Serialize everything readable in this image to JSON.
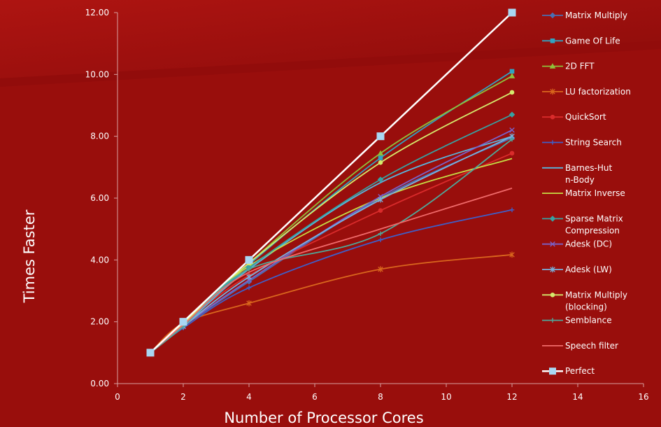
{
  "chart_data": {
    "type": "line",
    "xlabel": "Number of Processor Cores",
    "ylabel": "Times Faster",
    "xlim": [
      0,
      16
    ],
    "ylim": [
      0,
      12
    ],
    "x_ticks": [
      "0",
      "2",
      "4",
      "6",
      "8",
      "10",
      "12",
      "14",
      "16"
    ],
    "y_ticks": [
      "0.00",
      "2.00",
      "4.00",
      "6.00",
      "8.00",
      "10.00",
      "12.00"
    ],
    "grid": false,
    "legend_position": "right",
    "x": [
      1,
      2,
      4,
      8,
      12
    ],
    "series": [
      {
        "name": "Matrix Multiply",
        "color": "#4a6fb3",
        "marker": "diamond",
        "values": [
          1,
          1.85,
          3.3,
          6.0,
          7.95
        ]
      },
      {
        "name": "Game Of Life",
        "color": "#31a3c2",
        "marker": "square",
        "values": [
          1,
          1.9,
          3.85,
          7.3,
          10.1
        ]
      },
      {
        "name": "2D FFT",
        "color": "#8fc03a",
        "marker": "triangle",
        "values": [
          1,
          1.95,
          3.9,
          7.45,
          9.95
        ]
      },
      {
        "name": "LU factorization",
        "color": "#d9661d",
        "marker": "star",
        "values": [
          1,
          1.95,
          2.6,
          3.7,
          4.17
        ]
      },
      {
        "name": "QuickSort",
        "color": "#d92b2b",
        "marker": "circle",
        "values": [
          1,
          1.9,
          3.5,
          5.6,
          7.45
        ]
      },
      {
        "name": "String Search",
        "color": "#3f5fc8",
        "marker": "plus",
        "values": [
          1,
          1.8,
          3.1,
          4.65,
          5.62
        ]
      },
      {
        "name": "Barnes-Hut\nn-Body",
        "color": "#58b6de",
        "marker": "none",
        "values": [
          1,
          1.85,
          3.7,
          6.5,
          8.0
        ]
      },
      {
        "name": "Matrix Inverse",
        "color": "#c6dd45",
        "marker": "none",
        "values": [
          1,
          1.9,
          3.8,
          6.0,
          7.28
        ]
      },
      {
        "name": "Sparse Matrix\nCompression",
        "color": "#37a2a2",
        "marker": "diamond",
        "values": [
          1,
          1.9,
          3.75,
          6.6,
          8.7
        ]
      },
      {
        "name": "Adesk (DC)",
        "color": "#7a62c8",
        "marker": "x",
        "values": [
          1,
          1.85,
          3.35,
          6.05,
          8.2
        ]
      },
      {
        "name": "Adesk (LW)",
        "color": "#79b2de",
        "marker": "asterisk",
        "values": [
          1,
          1.85,
          3.45,
          5.95,
          8.0
        ]
      },
      {
        "name": "Matrix Multiply\n(blocking)",
        "color": "#d5ea6c",
        "marker": "circle",
        "values": [
          1,
          1.95,
          3.9,
          7.15,
          9.42
        ]
      },
      {
        "name": "Semblance",
        "color": "#4fa89a",
        "marker": "plus",
        "values": [
          1,
          1.85,
          3.7,
          4.85,
          7.9
        ]
      },
      {
        "name": "Speech filter",
        "color": "#f06a6a",
        "marker": "none",
        "values": [
          1,
          1.9,
          3.6,
          5.0,
          6.32
        ]
      },
      {
        "name": "Perfect",
        "color": "#ffffff",
        "marker": "square",
        "marker_color": "#a9d7f2",
        "values": [
          1,
          2,
          4,
          8,
          12
        ]
      }
    ]
  }
}
